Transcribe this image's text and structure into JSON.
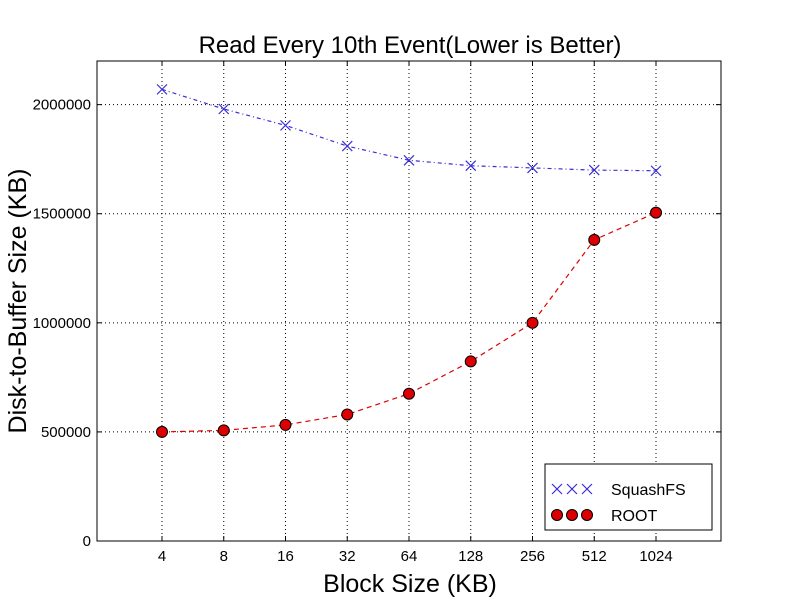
{
  "chart_data": {
    "type": "line",
    "title": "Read Every 10th Event(Lower is Better)",
    "xlabel": "Block Size (KB)",
    "ylabel": "Disk-to-Buffer Size (KB)",
    "categories": [
      "4",
      "8",
      "16",
      "32",
      "64",
      "128",
      "256",
      "512",
      "1024"
    ],
    "ylim": [
      0,
      2200000
    ],
    "yticks": [
      0,
      500000,
      1000000,
      1500000,
      2000000
    ],
    "ytick_labels": [
      "0",
      "500000",
      "1000000",
      "1500000",
      "2000000"
    ],
    "grid": true,
    "legend_position": "bottom-right",
    "series": [
      {
        "name": "SquashFS",
        "values": [
          2070000,
          1980000,
          1905000,
          1810000,
          1745000,
          1720000,
          1710000,
          1700000,
          1697000
        ],
        "color": "#3b2fd6",
        "marker": "x",
        "line_style": "dash-dot"
      },
      {
        "name": "ROOT",
        "values": [
          500000,
          507000,
          532000,
          580000,
          675000,
          823000,
          1000000,
          1380000,
          1505000
        ],
        "color": "#dd0000",
        "marker": "circle",
        "line_style": "dashed"
      }
    ]
  }
}
